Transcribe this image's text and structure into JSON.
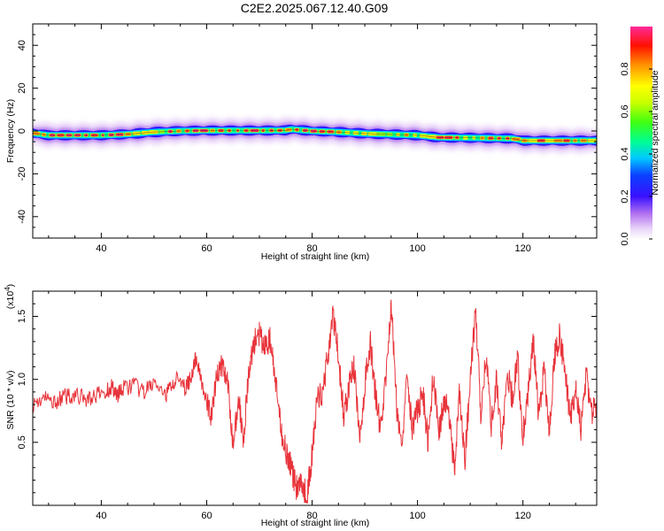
{
  "title": "C2E2.2025.067.12.40.G09",
  "chart_data": [
    {
      "type": "heatmap",
      "xlabel": "Height of straight line (km)",
      "ylabel": "Frequency (Hz)",
      "xlim": [
        27,
        134
      ],
      "ylim": [
        -50,
        50
      ],
      "x_ticks": [
        40,
        60,
        80,
        100,
        120
      ],
      "y_ticks": [
        -40,
        -20,
        0,
        20,
        40
      ],
      "colorbar": {
        "label": "Normalized spectral amplitude",
        "range": [
          0,
          1
        ],
        "ticks": [
          0.0,
          0.2,
          0.4,
          0.6,
          0.8
        ],
        "colormap": [
          "#ffffff",
          "#d3a6f5",
          "#7b22ff",
          "#1010ff",
          "#00d2ff",
          "#00ff64",
          "#a6ff00",
          "#ffff00",
          "#ff8c00",
          "#ff0000",
          "#ff2090"
        ]
      },
      "ridge": {
        "x": [
          27,
          30,
          40,
          45,
          50,
          55,
          60,
          65,
          70,
          75,
          76,
          80,
          85,
          90,
          95,
          100,
          104,
          110,
          118,
          120,
          125,
          134
        ],
        "y": [
          -1.0,
          -2.0,
          -2.0,
          -1.5,
          -0.5,
          0.0,
          0.2,
          0.2,
          0.2,
          0.3,
          0.8,
          0.0,
          -0.5,
          -1.2,
          -1.6,
          -2.0,
          -3.0,
          -3.2,
          -3.5,
          -4.5,
          -4.5,
          -4.5
        ]
      },
      "peak_amplitude": [
        {
          "from": 27,
          "to": 46,
          "amp": 0.95
        },
        {
          "from": 46,
          "to": 52,
          "amp": 0.6
        },
        {
          "from": 52,
          "to": 75,
          "amp": 0.95
        },
        {
          "from": 75,
          "to": 84,
          "amp": 0.9
        },
        {
          "from": 84,
          "to": 104,
          "amp": 0.7
        },
        {
          "from": 104,
          "to": 118,
          "amp": 0.85
        },
        {
          "from": 118,
          "to": 134,
          "amp": 0.9
        }
      ]
    },
    {
      "type": "line",
      "xlabel": "Height of straight line (km)",
      "ylabel": "SNR (10 * v/v)",
      "y_multiplier": "(x10^4)",
      "xlim": [
        27,
        134
      ],
      "ylim": [
        0.0,
        1.7
      ],
      "x_ticks": [
        40,
        60,
        80,
        100,
        120
      ],
      "y_ticks": [
        0.5,
        1.0,
        1.5
      ],
      "series": [
        {
          "color": "#e8333a",
          "x": [
            27,
            29,
            31,
            33,
            35,
            37,
            39,
            41,
            42,
            43,
            44,
            46,
            48,
            50,
            52,
            53,
            54,
            56,
            57,
            58,
            59,
            60,
            61,
            62,
            63,
            64,
            65,
            66,
            67,
            68,
            69,
            70,
            71,
            72,
            73,
            74,
            75,
            76,
            77,
            78,
            79,
            80,
            81,
            82,
            83,
            84,
            85,
            86,
            87,
            88,
            89,
            90,
            91,
            92,
            93,
            94,
            95,
            96,
            97,
            98,
            99,
            100,
            101,
            102,
            103,
            104,
            105,
            106,
            107,
            108,
            109,
            110,
            111,
            112,
            113,
            114,
            115,
            116,
            117,
            118,
            119,
            120,
            121,
            122,
            123,
            124,
            125,
            126,
            127,
            128,
            129,
            130,
            131,
            132,
            133,
            134
          ],
          "values": [
            0.8,
            0.85,
            0.82,
            0.86,
            0.88,
            0.84,
            0.87,
            0.9,
            0.95,
            0.88,
            0.92,
            0.96,
            0.89,
            0.98,
            0.85,
            0.94,
            1.0,
            0.93,
            1.02,
            1.17,
            1.0,
            0.8,
            0.72,
            1.05,
            1.12,
            0.95,
            0.48,
            0.85,
            0.55,
            1.05,
            1.3,
            1.35,
            1.25,
            1.32,
            1.0,
            0.62,
            0.45,
            0.3,
            0.15,
            0.2,
            0.05,
            0.4,
            0.85,
            0.9,
            1.2,
            1.5,
            1.2,
            0.7,
            0.95,
            1.1,
            0.5,
            0.95,
            1.3,
            0.9,
            0.6,
            1.0,
            1.62,
            0.8,
            0.45,
            1.1,
            0.6,
            0.75,
            0.9,
            0.5,
            1.05,
            0.55,
            0.85,
            0.7,
            0.3,
            0.9,
            0.35,
            1.0,
            1.55,
            0.75,
            1.2,
            0.65,
            1.0,
            0.5,
            1.05,
            0.85,
            1.15,
            0.55,
            0.9,
            1.3,
            0.7,
            1.1,
            0.6,
            1.2,
            1.35,
            1.05,
            0.7,
            0.95,
            0.6,
            1.05,
            0.75,
            0.8
          ]
        }
      ]
    }
  ]
}
